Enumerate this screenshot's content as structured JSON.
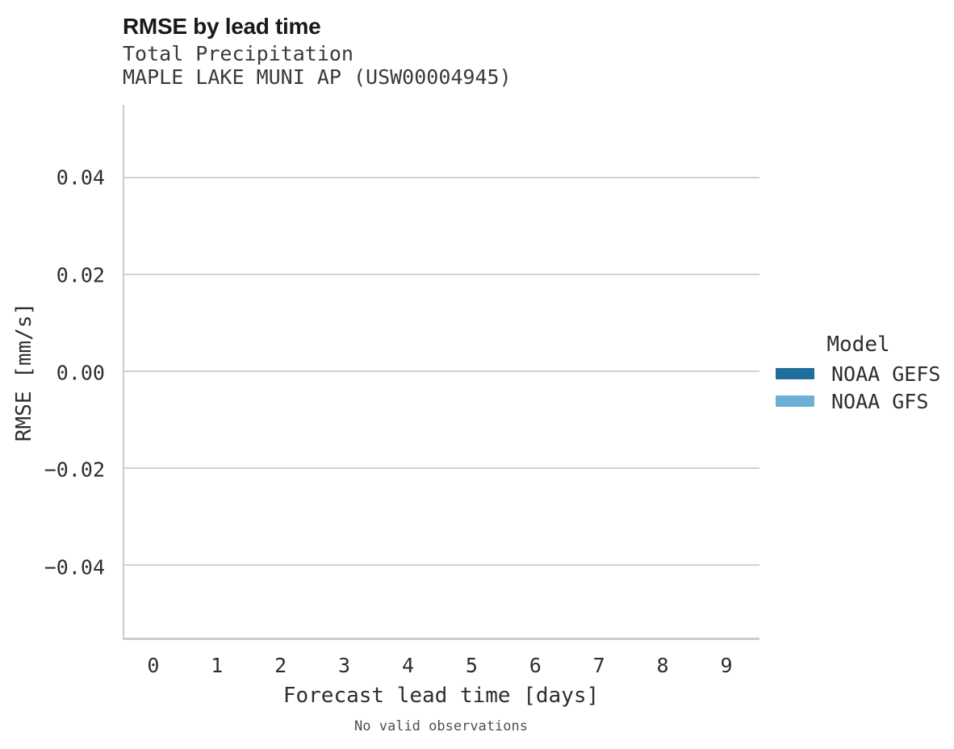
{
  "header": {
    "title": "RMSE by lead time",
    "subtitle1": "Total Precipitation",
    "subtitle2": "MAPLE LAKE MUNI AP (USW00004945)"
  },
  "axes": {
    "xlabel": "Forecast lead time [days]",
    "ylabel": "RMSE [mm/s]"
  },
  "legend": {
    "title": "Model",
    "entries": [
      {
        "label": "NOAA GEFS",
        "color": "#1f6e9c"
      },
      {
        "label": "NOAA GFS",
        "color": "#6cb0d6"
      }
    ]
  },
  "footer": {
    "note": "No valid observations"
  },
  "colors": {
    "spine": "#cccccc",
    "grid": "#d2d2d2",
    "series_dark_blue": "#1f6e9c",
    "series_light_blue": "#6cb0d6"
  },
  "chart_data": {
    "type": "line",
    "title": "RMSE by lead time",
    "subtitle": [
      "Total Precipitation",
      "MAPLE LAKE MUNI AP (USW00004945)"
    ],
    "xlabel": "Forecast lead time [days]",
    "ylabel": "RMSE [mm/s]",
    "x_ticks": [
      0,
      1,
      2,
      3,
      4,
      5,
      6,
      7,
      8,
      9
    ],
    "x_tick_labels": [
      "0",
      "1",
      "2",
      "3",
      "4",
      "5",
      "6",
      "7",
      "8",
      "9"
    ],
    "y_ticks": [
      0.04,
      0.02,
      0.0,
      -0.02,
      -0.04
    ],
    "y_tick_labels": [
      "0.04",
      "0.02",
      "0.00",
      "−0.02",
      "−0.04"
    ],
    "xlim": [
      -0.48,
      9.52
    ],
    "ylim": [
      -0.055,
      0.055
    ],
    "grid": "horizontal-only",
    "legend_position": "right-center",
    "series": [
      {
        "name": "NOAA GEFS",
        "color": "#1f6e9c",
        "x": [],
        "y": []
      },
      {
        "name": "NOAA GFS",
        "color": "#6cb0d6",
        "x": [],
        "y": []
      }
    ],
    "annotation": "No valid observations"
  }
}
